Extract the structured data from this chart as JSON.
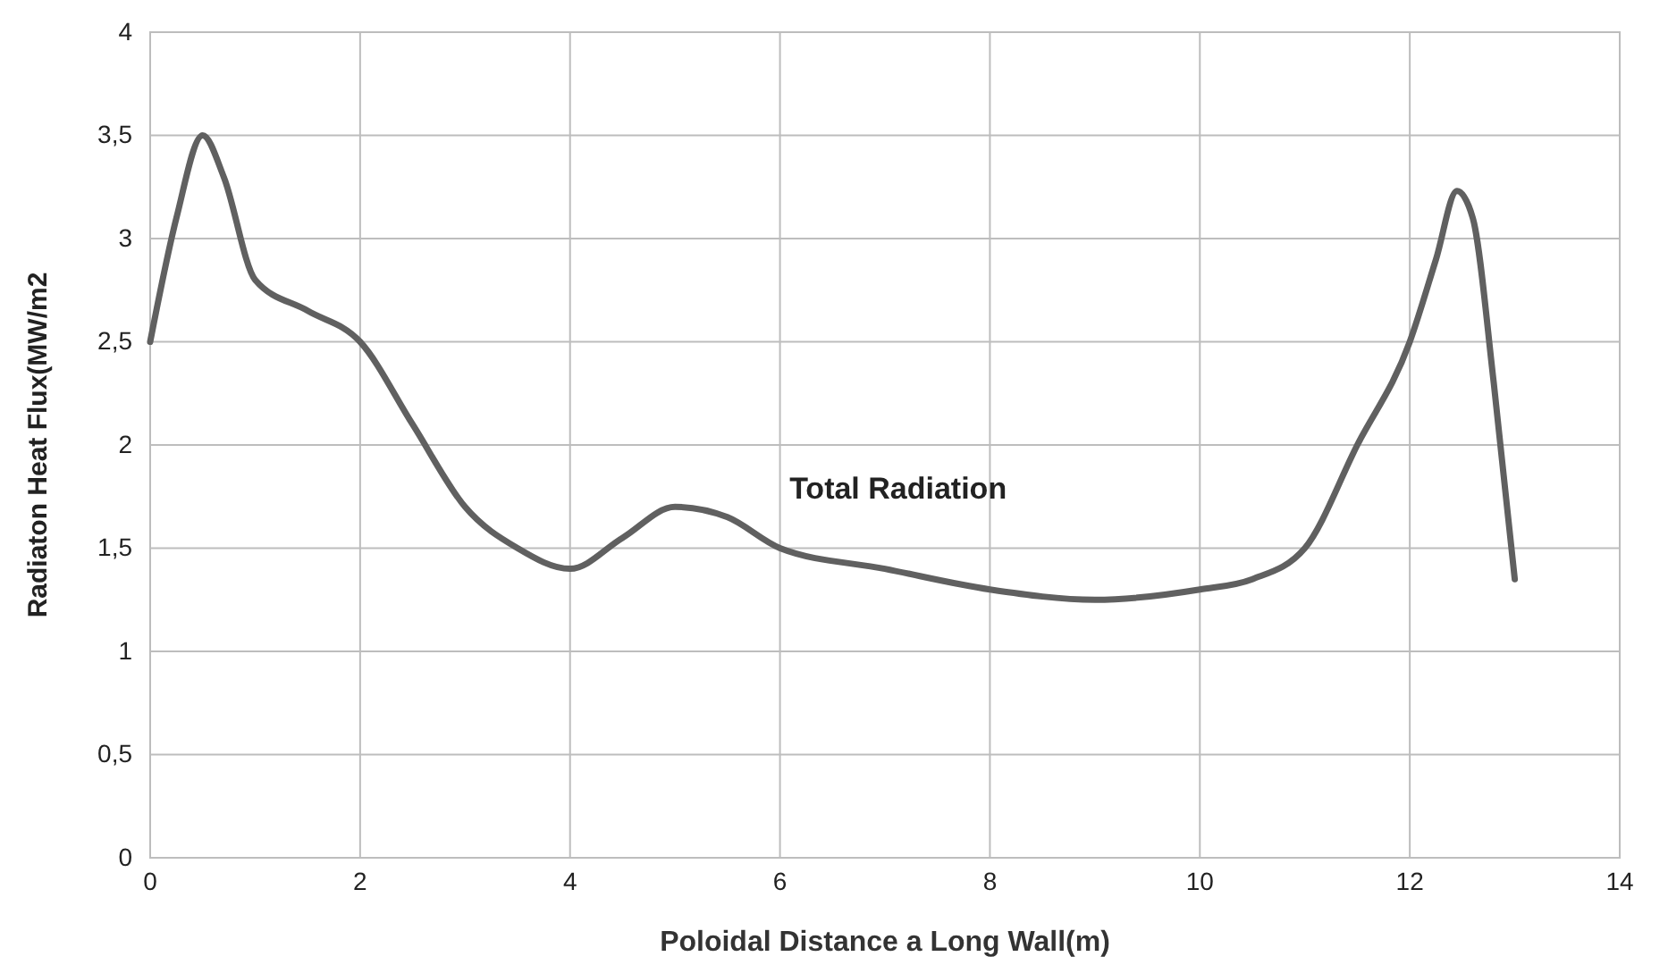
{
  "chart_data": {
    "type": "line",
    "xlabel": "Poloidal Distance a Long Wall(m)",
    "ylabel": "Radiaton Heat Flux(MW/m2",
    "xlim": [
      0,
      14
    ],
    "xticks": [
      0,
      2,
      4,
      6,
      8,
      10,
      12,
      14
    ],
    "ylim": [
      0,
      4
    ],
    "yticks": [
      0,
      {
        "value": 0.5,
        "label": "0,5"
      },
      1,
      {
        "value": 1.5,
        "label": "1,5"
      },
      2,
      {
        "value": 2.5,
        "label": "2,5"
      },
      3,
      {
        "value": 3.5,
        "label": "3,5"
      },
      4
    ],
    "grid": true,
    "marker": "none",
    "line_style": "solid",
    "annotations": [
      "Total Radiation"
    ],
    "series": [
      {
        "color": "#606060",
        "x": [
          0,
          0.25,
          0.5,
          0.7,
          1.0,
          1.5,
          2,
          2.5,
          3,
          3.5,
          4,
          4.5,
          5,
          5.5,
          6,
          7,
          8,
          9,
          10,
          10.5,
          11,
          11.5,
          12,
          12.25,
          12.45,
          12.6,
          12.8,
          13
        ],
        "values": [
          2.5,
          3.1,
          3.5,
          3.3,
          2.8,
          2.65,
          2.5,
          2.1,
          1.7,
          1.5,
          1.4,
          1.55,
          1.7,
          1.65,
          1.5,
          1.4,
          1.3,
          1.25,
          1.3,
          1.35,
          1.5,
          2.0,
          2.5,
          2.9,
          3.23,
          3.1,
          2.3,
          1.35
        ]
      }
    ]
  }
}
